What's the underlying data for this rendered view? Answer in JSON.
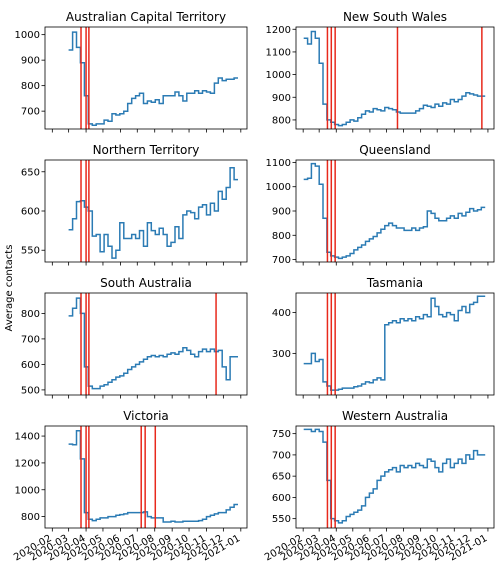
{
  "ylabel": "Average contacts",
  "x_tick_labels": [
    "2020-02",
    "2020-03",
    "2020-04",
    "2020-05",
    "2020-06",
    "2020-07",
    "2020-08",
    "2020-09",
    "2020-10",
    "2020-11",
    "2020-12",
    "2021-01"
  ],
  "colors": {
    "series": "#2b7bb4",
    "event_lines": "#e8291c"
  },
  "chart_data": [
    {
      "type": "line",
      "title": "Australian Capital Territory",
      "ylim": [
        630,
        1030
      ],
      "yticks": [
        700,
        800,
        900,
        1000
      ],
      "x": [
        "2020-03-01",
        "2020-03-08",
        "2020-03-15",
        "2020-03-22",
        "2020-03-29",
        "2020-04-05",
        "2020-04-12",
        "2020-04-19",
        "2020-04-26",
        "2020-05-03",
        "2020-05-10",
        "2020-05-17",
        "2020-05-24",
        "2020-05-31",
        "2020-06-07",
        "2020-06-14",
        "2020-06-21",
        "2020-06-28",
        "2020-07-05",
        "2020-07-12",
        "2020-07-19",
        "2020-07-26",
        "2020-08-02",
        "2020-08-09",
        "2020-08-16",
        "2020-08-23",
        "2020-08-30",
        "2020-09-06",
        "2020-09-13",
        "2020-09-20",
        "2020-09-27",
        "2020-10-04",
        "2020-10-11",
        "2020-10-18",
        "2020-10-25",
        "2020-11-01",
        "2020-11-08",
        "2020-11-15",
        "2020-11-22",
        "2020-11-29",
        "2020-12-06",
        "2020-12-13",
        "2020-12-20"
      ],
      "values": [
        940,
        1010,
        950,
        890,
        760,
        650,
        645,
        650,
        650,
        665,
        660,
        690,
        685,
        690,
        700,
        730,
        750,
        760,
        770,
        730,
        740,
        735,
        745,
        730,
        760,
        760,
        760,
        775,
        760,
        740,
        770,
        770,
        780,
        770,
        780,
        775,
        770,
        810,
        830,
        820,
        825,
        825,
        830
      ],
      "event_dates": [
        "2020-03-23",
        "2020-04-01",
        "2020-04-06"
      ]
    },
    {
      "type": "line",
      "title": "New South Wales",
      "ylim": [
        760,
        1210
      ],
      "yticks": [
        800,
        900,
        1000,
        1100,
        1200
      ],
      "x": [
        "2020-02-02",
        "2020-02-09",
        "2020-02-16",
        "2020-02-23",
        "2020-03-01",
        "2020-03-08",
        "2020-03-15",
        "2020-03-22",
        "2020-03-29",
        "2020-04-05",
        "2020-04-12",
        "2020-04-19",
        "2020-04-26",
        "2020-05-03",
        "2020-05-10",
        "2020-05-17",
        "2020-05-24",
        "2020-05-31",
        "2020-06-07",
        "2020-06-14",
        "2020-06-21",
        "2020-06-28",
        "2020-07-05",
        "2020-07-12",
        "2020-07-19",
        "2020-07-26",
        "2020-08-02",
        "2020-08-09",
        "2020-08-16",
        "2020-08-23",
        "2020-08-30",
        "2020-09-06",
        "2020-09-13",
        "2020-09-20",
        "2020-09-27",
        "2020-10-04",
        "2020-10-11",
        "2020-10-18",
        "2020-10-25",
        "2020-11-01",
        "2020-11-08",
        "2020-11-15",
        "2020-11-22",
        "2020-11-29",
        "2020-12-06",
        "2020-12-13",
        "2020-12-20"
      ],
      "values": [
        1160,
        1135,
        1190,
        1160,
        1050,
        870,
        800,
        790,
        780,
        775,
        780,
        790,
        800,
        795,
        810,
        825,
        840,
        835,
        850,
        845,
        840,
        855,
        850,
        845,
        835,
        830,
        830,
        830,
        830,
        840,
        850,
        865,
        860,
        855,
        870,
        860,
        875,
        870,
        890,
        880,
        890,
        905,
        920,
        915,
        910,
        905,
        905
      ],
      "event_dates": [
        "2020-03-16",
        "2020-03-23",
        "2020-03-30",
        "2020-07-21",
        "2020-12-21"
      ]
    },
    {
      "type": "line",
      "title": "Northern Territory",
      "ylim": [
        535,
        665
      ],
      "yticks": [
        550,
        600,
        650
      ],
      "x": [
        "2020-03-01",
        "2020-03-08",
        "2020-03-15",
        "2020-03-22",
        "2020-03-29",
        "2020-04-05",
        "2020-04-12",
        "2020-04-19",
        "2020-04-26",
        "2020-05-03",
        "2020-05-10",
        "2020-05-17",
        "2020-05-24",
        "2020-05-31",
        "2020-06-07",
        "2020-06-14",
        "2020-06-21",
        "2020-06-28",
        "2020-07-05",
        "2020-07-12",
        "2020-07-19",
        "2020-07-26",
        "2020-08-02",
        "2020-08-09",
        "2020-08-16",
        "2020-08-23",
        "2020-08-30",
        "2020-09-06",
        "2020-09-13",
        "2020-09-20",
        "2020-09-27",
        "2020-10-04",
        "2020-10-11",
        "2020-10-18",
        "2020-10-25",
        "2020-11-01",
        "2020-11-08",
        "2020-11-15",
        "2020-11-22",
        "2020-11-29",
        "2020-12-06",
        "2020-12-13",
        "2020-12-20"
      ],
      "values": [
        576,
        590,
        612,
        613,
        605,
        600,
        568,
        570,
        548,
        570,
        555,
        540,
        550,
        585,
        565,
        565,
        570,
        565,
        575,
        555,
        585,
        575,
        570,
        578,
        570,
        555,
        560,
        580,
        565,
        595,
        600,
        598,
        590,
        605,
        608,
        595,
        610,
        600,
        625,
        615,
        630,
        655,
        640
      ],
      "event_dates": [
        "2020-03-23",
        "2020-04-01",
        "2020-04-06"
      ]
    },
    {
      "type": "line",
      "title": "Queensland",
      "ylim": [
        690,
        1110
      ],
      "yticks": [
        700,
        800,
        900,
        1000,
        1100
      ],
      "x": [
        "2020-02-02",
        "2020-02-09",
        "2020-02-16",
        "2020-02-23",
        "2020-03-01",
        "2020-03-08",
        "2020-03-15",
        "2020-03-22",
        "2020-03-29",
        "2020-04-05",
        "2020-04-12",
        "2020-04-19",
        "2020-04-26",
        "2020-05-03",
        "2020-05-10",
        "2020-05-17",
        "2020-05-24",
        "2020-05-31",
        "2020-06-07",
        "2020-06-14",
        "2020-06-21",
        "2020-06-28",
        "2020-07-05",
        "2020-07-12",
        "2020-07-19",
        "2020-07-26",
        "2020-08-02",
        "2020-08-09",
        "2020-08-16",
        "2020-08-23",
        "2020-08-30",
        "2020-09-06",
        "2020-09-13",
        "2020-09-20",
        "2020-09-27",
        "2020-10-04",
        "2020-10-11",
        "2020-10-18",
        "2020-10-25",
        "2020-11-01",
        "2020-11-08",
        "2020-11-15",
        "2020-11-22",
        "2020-11-29",
        "2020-12-06",
        "2020-12-13",
        "2020-12-20"
      ],
      "values": [
        1030,
        1035,
        1095,
        1085,
        1010,
        870,
        730,
        715,
        710,
        705,
        710,
        715,
        725,
        740,
        750,
        760,
        775,
        785,
        795,
        810,
        825,
        840,
        850,
        840,
        830,
        830,
        820,
        820,
        830,
        820,
        830,
        835,
        900,
        890,
        870,
        860,
        860,
        870,
        880,
        870,
        890,
        880,
        895,
        910,
        900,
        905,
        915
      ],
      "event_dates": [
        "2020-03-16",
        "2020-03-23",
        "2020-03-30"
      ]
    },
    {
      "type": "line",
      "title": "South Australia",
      "ylim": [
        480,
        880
      ],
      "yticks": [
        500,
        600,
        700,
        800
      ],
      "x": [
        "2020-03-01",
        "2020-03-08",
        "2020-03-15",
        "2020-03-22",
        "2020-03-29",
        "2020-04-05",
        "2020-04-12",
        "2020-04-19",
        "2020-04-26",
        "2020-05-03",
        "2020-05-10",
        "2020-05-17",
        "2020-05-24",
        "2020-05-31",
        "2020-06-07",
        "2020-06-14",
        "2020-06-21",
        "2020-06-28",
        "2020-07-05",
        "2020-07-12",
        "2020-07-19",
        "2020-07-26",
        "2020-08-02",
        "2020-08-09",
        "2020-08-16",
        "2020-08-23",
        "2020-08-30",
        "2020-09-06",
        "2020-09-13",
        "2020-09-20",
        "2020-09-27",
        "2020-10-04",
        "2020-10-11",
        "2020-10-18",
        "2020-10-25",
        "2020-11-01",
        "2020-11-08",
        "2020-11-15",
        "2020-11-22",
        "2020-11-29",
        "2020-12-06",
        "2020-12-13",
        "2020-12-20"
      ],
      "values": [
        790,
        820,
        860,
        800,
        590,
        515,
        505,
        505,
        515,
        520,
        530,
        540,
        550,
        555,
        565,
        580,
        590,
        600,
        610,
        620,
        630,
        635,
        630,
        635,
        630,
        640,
        645,
        640,
        650,
        665,
        655,
        640,
        630,
        650,
        660,
        650,
        660,
        650,
        655,
        590,
        540,
        630,
        630
      ],
      "event_dates": [
        "2020-03-23",
        "2020-04-01",
        "2020-04-06",
        "2020-11-18"
      ]
    },
    {
      "type": "line",
      "title": "Tasmania",
      "ylim": [
        198,
        448
      ],
      "yticks": [
        300,
        400
      ],
      "x": [
        "2020-02-02",
        "2020-02-09",
        "2020-02-16",
        "2020-02-23",
        "2020-03-01",
        "2020-03-08",
        "2020-03-15",
        "2020-03-22",
        "2020-03-29",
        "2020-04-05",
        "2020-04-12",
        "2020-04-19",
        "2020-04-26",
        "2020-05-03",
        "2020-05-10",
        "2020-05-17",
        "2020-05-24",
        "2020-05-31",
        "2020-06-07",
        "2020-06-14",
        "2020-06-21",
        "2020-06-28",
        "2020-07-05",
        "2020-07-12",
        "2020-07-19",
        "2020-07-26",
        "2020-08-02",
        "2020-08-09",
        "2020-08-16",
        "2020-08-23",
        "2020-08-30",
        "2020-09-06",
        "2020-09-13",
        "2020-09-20",
        "2020-09-27",
        "2020-10-04",
        "2020-10-11",
        "2020-10-18",
        "2020-10-25",
        "2020-11-01",
        "2020-11-08",
        "2020-11-15",
        "2020-11-22",
        "2020-11-29",
        "2020-12-06",
        "2020-12-13",
        "2020-12-20"
      ],
      "values": [
        275,
        275,
        300,
        280,
        285,
        230,
        220,
        210,
        210,
        212,
        215,
        215,
        215,
        218,
        220,
        225,
        230,
        228,
        235,
        240,
        235,
        370,
        375,
        380,
        375,
        385,
        380,
        385,
        380,
        390,
        385,
        395,
        390,
        435,
        415,
        395,
        390,
        400,
        395,
        380,
        405,
        415,
        400,
        420,
        425,
        440,
        440
      ],
      "event_dates": [
        "2020-03-16",
        "2020-03-23",
        "2020-03-30"
      ]
    },
    {
      "type": "line",
      "title": "Victoria",
      "ylim": [
        715,
        1475
      ],
      "yticks": [
        800,
        1000,
        1200,
        1400
      ],
      "x": [
        "2020-03-01",
        "2020-03-08",
        "2020-03-15",
        "2020-03-22",
        "2020-03-29",
        "2020-04-05",
        "2020-04-12",
        "2020-04-19",
        "2020-04-26",
        "2020-05-03",
        "2020-05-10",
        "2020-05-17",
        "2020-05-24",
        "2020-05-31",
        "2020-06-07",
        "2020-06-14",
        "2020-06-21",
        "2020-06-28",
        "2020-07-05",
        "2020-07-12",
        "2020-07-19",
        "2020-07-26",
        "2020-08-02",
        "2020-08-09",
        "2020-08-16",
        "2020-08-23",
        "2020-08-30",
        "2020-09-06",
        "2020-09-13",
        "2020-09-20",
        "2020-09-27",
        "2020-10-04",
        "2020-10-11",
        "2020-10-18",
        "2020-10-25",
        "2020-11-01",
        "2020-11-08",
        "2020-11-15",
        "2020-11-22",
        "2020-11-29",
        "2020-12-06",
        "2020-12-13",
        "2020-12-20"
      ],
      "values": [
        1340,
        1335,
        1440,
        1230,
        830,
        780,
        770,
        780,
        790,
        790,
        800,
        800,
        810,
        815,
        820,
        830,
        830,
        830,
        830,
        835,
        800,
        790,
        790,
        790,
        760,
        760,
        765,
        760,
        760,
        765,
        765,
        765,
        765,
        770,
        780,
        800,
        810,
        820,
        830,
        830,
        850,
        870,
        890
      ],
      "event_dates": [
        "2020-03-23",
        "2020-04-01",
        "2020-04-06",
        "2020-07-08",
        "2020-07-15",
        "2020-08-02"
      ]
    },
    {
      "type": "line",
      "title": "Western Australia",
      "ylim": [
        528,
        768
      ],
      "yticks": [
        550,
        600,
        650,
        700,
        750
      ],
      "x": [
        "2020-02-02",
        "2020-02-09",
        "2020-02-16",
        "2020-02-23",
        "2020-03-01",
        "2020-03-08",
        "2020-03-15",
        "2020-03-22",
        "2020-03-29",
        "2020-04-05",
        "2020-04-12",
        "2020-04-19",
        "2020-04-26",
        "2020-05-03",
        "2020-05-10",
        "2020-05-17",
        "2020-05-24",
        "2020-05-31",
        "2020-06-07",
        "2020-06-14",
        "2020-06-21",
        "2020-06-28",
        "2020-07-05",
        "2020-07-12",
        "2020-07-19",
        "2020-07-26",
        "2020-08-02",
        "2020-08-09",
        "2020-08-16",
        "2020-08-23",
        "2020-08-30",
        "2020-09-06",
        "2020-09-13",
        "2020-09-20",
        "2020-09-27",
        "2020-10-04",
        "2020-10-11",
        "2020-10-18",
        "2020-10-25",
        "2020-11-01",
        "2020-11-08",
        "2020-11-15",
        "2020-11-22",
        "2020-11-29",
        "2020-12-06",
        "2020-12-13",
        "2020-12-20"
      ],
      "values": [
        760,
        760,
        755,
        760,
        755,
        730,
        640,
        550,
        545,
        540,
        545,
        555,
        560,
        565,
        570,
        580,
        600,
        610,
        620,
        640,
        650,
        660,
        665,
        670,
        660,
        675,
        670,
        675,
        670,
        680,
        675,
        670,
        690,
        685,
        670,
        660,
        680,
        690,
        670,
        680,
        690,
        680,
        700,
        690,
        710,
        700,
        700
      ],
      "event_dates": [
        "2020-03-16",
        "2020-03-23",
        "2020-03-30"
      ]
    }
  ]
}
